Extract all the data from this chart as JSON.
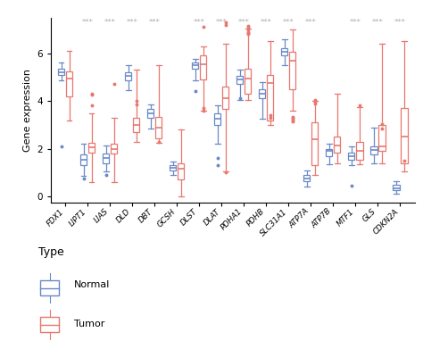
{
  "genes": [
    "FDX1",
    "LIPT1",
    "LIAS",
    "DLD",
    "DBT",
    "GCSH",
    "DLST",
    "DLAT",
    "PDHA1",
    "PDHB",
    "SLC31A1",
    "ATP7A",
    "ATP7B",
    "MTF1",
    "GLS",
    "CDKN2A"
  ],
  "significance": [
    false,
    true,
    true,
    true,
    true,
    false,
    true,
    true,
    true,
    true,
    true,
    true,
    false,
    true,
    true,
    true
  ],
  "normal_boxes": [
    {
      "q1": 5.1,
      "median": 5.2,
      "q3": 5.35,
      "whislo": 4.85,
      "whishi": 5.6,
      "fliers": [
        2.1
      ]
    },
    {
      "q1": 1.3,
      "median": 1.55,
      "q3": 1.75,
      "whislo": 0.85,
      "whishi": 2.2,
      "fliers": [
        0.75
      ]
    },
    {
      "q1": 1.4,
      "median": 1.6,
      "q3": 1.8,
      "whislo": 1.05,
      "whishi": 2.15,
      "fliers": [
        0.9
      ]
    },
    {
      "q1": 4.85,
      "median": 5.05,
      "q3": 5.2,
      "whislo": 4.45,
      "whishi": 5.5,
      "fliers": []
    },
    {
      "q1": 3.3,
      "median": 3.5,
      "q3": 3.65,
      "whislo": 2.85,
      "whishi": 3.85,
      "fliers": []
    },
    {
      "q1": 1.1,
      "median": 1.2,
      "q3": 1.3,
      "whislo": 0.9,
      "whishi": 1.45,
      "fliers": []
    },
    {
      "q1": 5.35,
      "median": 5.5,
      "q3": 5.6,
      "whislo": 4.85,
      "whishi": 5.75,
      "fliers": [
        4.4
      ]
    },
    {
      "q1": 3.0,
      "median": 3.25,
      "q3": 3.5,
      "whislo": 2.2,
      "whishi": 3.8,
      "fliers": [
        1.3,
        1.6
      ]
    },
    {
      "q1": 4.7,
      "median": 4.9,
      "q3": 5.05,
      "whislo": 4.05,
      "whishi": 5.3,
      "fliers": [
        4.1
      ]
    },
    {
      "q1": 4.1,
      "median": 4.3,
      "q3": 4.5,
      "whislo": 3.25,
      "whishi": 4.8,
      "fliers": []
    },
    {
      "q1": 5.9,
      "median": 6.05,
      "q3": 6.2,
      "whislo": 5.5,
      "whishi": 6.6,
      "fliers": []
    },
    {
      "q1": 0.65,
      "median": 0.75,
      "q3": 0.9,
      "whislo": 0.4,
      "whishi": 1.1,
      "fliers": []
    },
    {
      "q1": 1.7,
      "median": 1.9,
      "q3": 2.0,
      "whislo": 1.35,
      "whishi": 2.2,
      "fliers": []
    },
    {
      "q1": 1.55,
      "median": 1.7,
      "q3": 1.85,
      "whislo": 1.3,
      "whishi": 2.1,
      "fliers": [
        0.45
      ]
    },
    {
      "q1": 1.75,
      "median": 1.95,
      "q3": 2.1,
      "whislo": 1.4,
      "whishi": 2.9,
      "fliers": []
    },
    {
      "q1": 0.25,
      "median": 0.35,
      "q3": 0.5,
      "whislo": 0.1,
      "whishi": 0.65,
      "fliers": []
    }
  ],
  "tumor_boxes": [
    {
      "q1": 4.2,
      "median": 4.95,
      "q3": 5.25,
      "whislo": 3.2,
      "whishi": 6.1,
      "fliers": []
    },
    {
      "q1": 1.85,
      "median": 2.05,
      "q3": 2.25,
      "whislo": 0.6,
      "whishi": 3.5,
      "fliers": [
        3.8,
        4.25,
        4.3
      ]
    },
    {
      "q1": 1.8,
      "median": 2.0,
      "q3": 2.2,
      "whislo": 0.6,
      "whishi": 3.3,
      "fliers": [
        4.7
      ]
    },
    {
      "q1": 2.7,
      "median": 3.0,
      "q3": 3.3,
      "whislo": 2.3,
      "whishi": 5.3,
      "fliers": [
        3.85,
        4.0
      ]
    },
    {
      "q1": 2.45,
      "median": 2.9,
      "q3": 3.35,
      "whislo": 2.25,
      "whishi": 5.5,
      "fliers": [
        2.3
      ]
    },
    {
      "q1": 0.7,
      "median": 1.15,
      "q3": 1.4,
      "whislo": 0.0,
      "whishi": 2.8,
      "fliers": []
    },
    {
      "q1": 4.9,
      "median": 5.55,
      "q3": 5.9,
      "whislo": 3.6,
      "whishi": 6.3,
      "fliers": [
        3.6,
        3.7,
        7.1
      ]
    },
    {
      "q1": 3.65,
      "median": 4.1,
      "q3": 4.6,
      "whislo": 1.05,
      "whishi": 6.4,
      "fliers": [
        1.0,
        7.2,
        7.3
      ]
    },
    {
      "q1": 4.3,
      "median": 4.95,
      "q3": 5.35,
      "whislo": 4.05,
      "whishi": 7.05,
      "fliers": [
        6.8,
        6.85,
        6.9,
        7.0,
        7.1,
        7.15
      ]
    },
    {
      "q1": 3.2,
      "median": 4.75,
      "q3": 5.1,
      "whislo": 3.0,
      "whishi": 6.5,
      "fliers": [
        3.3,
        3.4
      ]
    },
    {
      "q1": 4.5,
      "median": 5.7,
      "q3": 6.05,
      "whislo": 3.6,
      "whishi": 7.0,
      "fliers": [
        3.15,
        3.2,
        3.25,
        3.3,
        3.35
      ]
    },
    {
      "q1": 1.3,
      "median": 2.4,
      "q3": 3.1,
      "whislo": 0.9,
      "whishi": 4.0,
      "fliers": [
        3.9,
        3.95,
        4.05
      ]
    },
    {
      "q1": 1.85,
      "median": 2.15,
      "q3": 2.5,
      "whislo": 1.4,
      "whishi": 4.3,
      "fliers": []
    },
    {
      "q1": 1.55,
      "median": 1.9,
      "q3": 2.3,
      "whislo": 1.35,
      "whishi": 3.75,
      "fliers": [
        3.8
      ]
    },
    {
      "q1": 1.9,
      "median": 2.1,
      "q3": 3.0,
      "whislo": 1.4,
      "whishi": 6.4,
      "fliers": [
        2.85,
        3.05
      ]
    },
    {
      "q1": 1.4,
      "median": 2.5,
      "q3": 3.7,
      "whislo": 1.05,
      "whishi": 6.5,
      "fliers": [
        1.5
      ]
    }
  ],
  "normal_color": "#6989c8",
  "tumor_color": "#e8776e",
  "sig_color": "#aaaaaa",
  "ylim": [
    -0.25,
    7.5
  ],
  "yticks": [
    0,
    2,
    4,
    6
  ],
  "ylabel": "Gene expression",
  "legend_title": "Type",
  "background_color": "#ffffff"
}
